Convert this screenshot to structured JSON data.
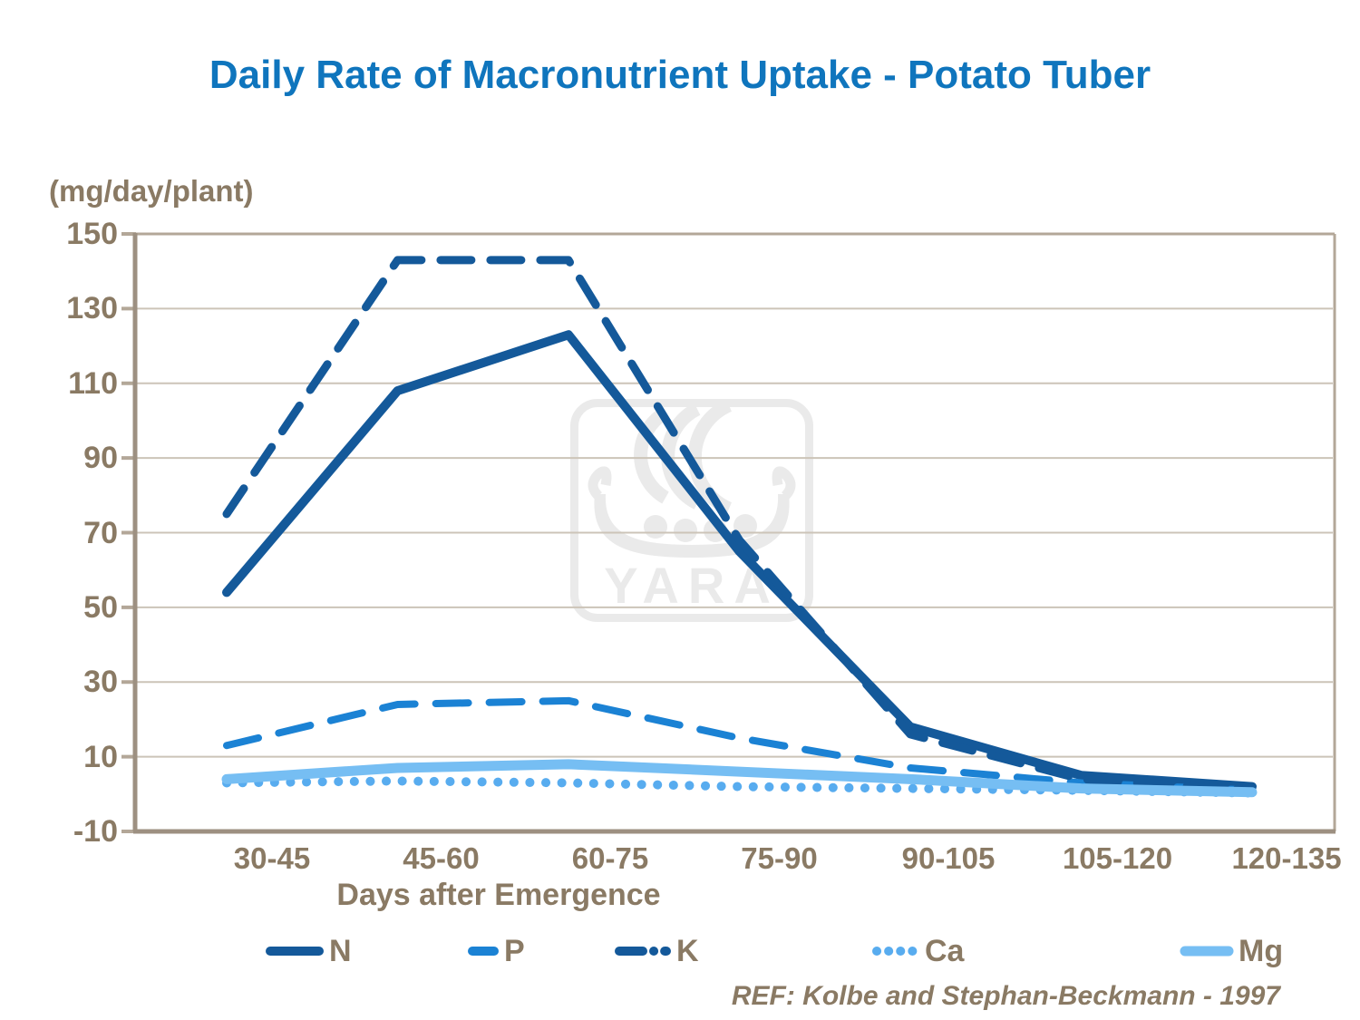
{
  "title": "Daily Rate of Macronutrient Uptake - Potato Tuber",
  "y_axis_unit_label": "(mg/day/plant)",
  "x_axis_label": "Days after Emergence",
  "reference": "REF: Kolbe and Stephan-Beckmann - 1997",
  "watermark_text": "YARA",
  "colors": {
    "title_blue": "#0f75bd",
    "text_brown": "#8a7a64",
    "dark_blue": "#14599a",
    "medium_blue": "#1b82d4",
    "light_blue_ca": "#58acef",
    "light_blue_mg": "#76bef3",
    "gridline": "#ccc4b8",
    "axis_major": "#9d9081",
    "axis_minor": "#b3a798",
    "watermark_gray": "#eaeaea"
  },
  "chart_data": {
    "type": "line",
    "title": "Daily Rate of Macronutrient Uptake - Potato Tuber",
    "xlabel": "Days after Emergence",
    "ylabel": "(mg/day/plant)",
    "categories": [
      "30-45",
      "45-60",
      "60-75",
      "75-90",
      "90-105",
      "105-120",
      "120-135"
    ],
    "series": [
      {
        "name": "N",
        "style": "solid",
        "color": "#14599a",
        "values": [
          54,
          108,
          123,
          65,
          18,
          5,
          2
        ]
      },
      {
        "name": "P",
        "style": "dashed",
        "color": "#1b82d4",
        "values": [
          13,
          24,
          25,
          15,
          7,
          3,
          1
        ]
      },
      {
        "name": "K",
        "style": "dash-dot",
        "color": "#14599a",
        "values": [
          75,
          143,
          143,
          68,
          16,
          4,
          1
        ]
      },
      {
        "name": "Ca",
        "style": "dotted",
        "color": "#58acef",
        "values": [
          3,
          3.5,
          3,
          2,
          1.5,
          1,
          0.3
        ]
      },
      {
        "name": "Mg",
        "style": "solid",
        "color": "#76bef3",
        "values": [
          4,
          7,
          8,
          6,
          4,
          1.5,
          0.5
        ]
      }
    ],
    "ylim": [
      -10,
      150
    ],
    "yticks": [
      150,
      130,
      110,
      90,
      70,
      50,
      30,
      10,
      -10
    ],
    "grid": "horizontal",
    "legend_position": "bottom"
  }
}
